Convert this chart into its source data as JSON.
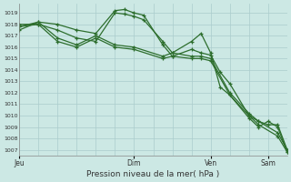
{
  "background_color": "#cce8e4",
  "grid_color": "#aacccc",
  "line_color": "#2d6e2d",
  "ylabel_ticks": [
    1007,
    1008,
    1009,
    1010,
    1011,
    1012,
    1013,
    1014,
    1015,
    1016,
    1017,
    1018,
    1019
  ],
  "ylim": [
    1006.5,
    1019.8
  ],
  "xlim": [
    0,
    168
  ],
  "xlabel": "Pression niveau de la mer( hPa )",
  "xtick_labels": [
    "Jeu",
    "Dim",
    "Ven",
    "Sam"
  ],
  "xtick_hours": [
    0,
    72,
    120,
    156
  ],
  "vgrid_hours": [
    0,
    12,
    24,
    36,
    48,
    60,
    72,
    84,
    96,
    108,
    120,
    132,
    144,
    156,
    168
  ],
  "series": [
    {
      "x": [
        0,
        12,
        24,
        36,
        48,
        60,
        66,
        72,
        78,
        90,
        96,
        108,
        114,
        120,
        126,
        132,
        144,
        150,
        156,
        162,
        168
      ],
      "y": [
        1017.5,
        1018.2,
        1018.0,
        1017.5,
        1017.2,
        1019.2,
        1019.3,
        1019.0,
        1018.8,
        1016.2,
        1015.2,
        1015.8,
        1015.5,
        1015.3,
        1013.8,
        1012.8,
        1010.0,
        1009.5,
        1009.2,
        1009.2,
        1007.0
      ]
    },
    {
      "x": [
        0,
        12,
        24,
        36,
        48,
        60,
        66,
        72,
        78,
        90,
        96,
        108,
        114,
        120,
        126,
        132,
        144,
        150,
        156,
        162,
        168
      ],
      "y": [
        1017.8,
        1018.0,
        1017.5,
        1016.8,
        1016.5,
        1019.0,
        1018.9,
        1018.7,
        1018.4,
        1016.5,
        1015.5,
        1016.5,
        1017.2,
        1015.5,
        1012.5,
        1011.8,
        1009.8,
        1009.0,
        1009.5,
        1009.0,
        1006.8
      ]
    },
    {
      "x": [
        0,
        12,
        24,
        36,
        48,
        60,
        72,
        90,
        96,
        108,
        114,
        120,
        132,
        144,
        150,
        162,
        168
      ],
      "y": [
        1017.8,
        1018.2,
        1016.8,
        1016.2,
        1017.0,
        1016.2,
        1016.0,
        1015.2,
        1015.5,
        1015.2,
        1015.2,
        1015.0,
        1012.0,
        1010.2,
        1009.5,
        1008.5,
        1007.0
      ]
    },
    {
      "x": [
        0,
        12,
        24,
        36,
        48,
        60,
        72,
        90,
        96,
        108,
        114,
        120,
        132,
        144,
        150,
        162,
        168
      ],
      "y": [
        1018.0,
        1018.0,
        1016.5,
        1016.0,
        1016.8,
        1016.0,
        1015.8,
        1015.0,
        1015.2,
        1015.0,
        1015.0,
        1014.8,
        1011.8,
        1010.0,
        1009.2,
        1008.2,
        1006.8
      ]
    }
  ]
}
